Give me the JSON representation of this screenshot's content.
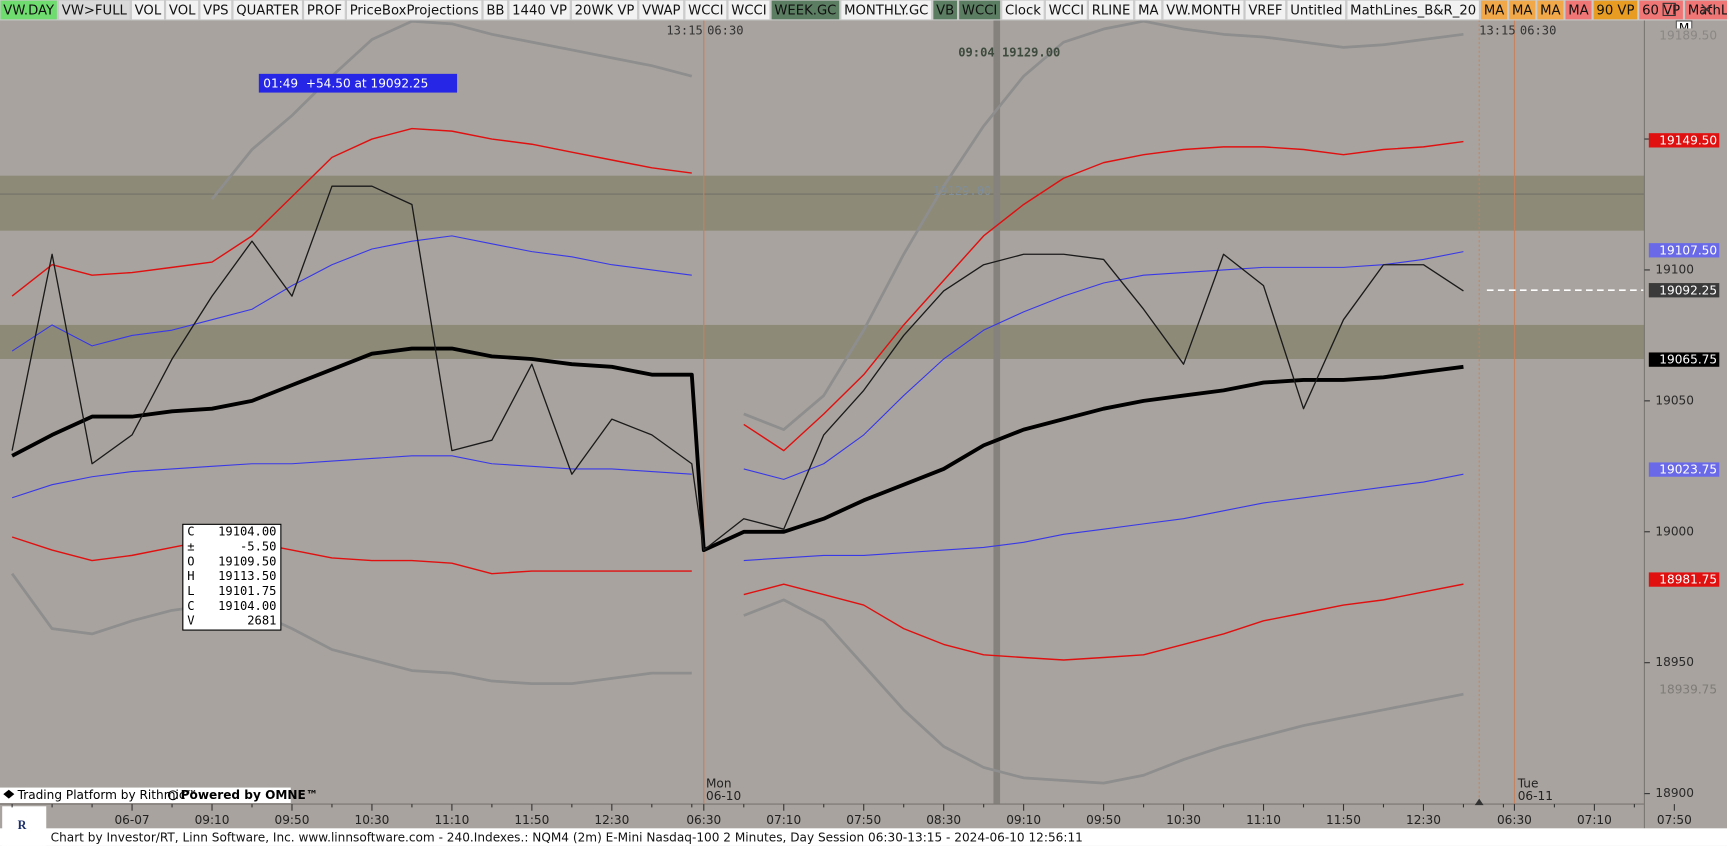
{
  "toolbar": {
    "buttons": [
      {
        "label": "VW.DAY",
        "color": "#6fdc6f"
      },
      {
        "label": "VW>FULL",
        "color": "#d9d9d9"
      },
      {
        "label": "VOL",
        "color": "#f2f2f2"
      },
      {
        "label": "VOL",
        "color": "#f2f2f2"
      },
      {
        "label": "VPS",
        "color": "#f2f2f2"
      },
      {
        "label": "QUARTER",
        "color": "#f2f2f2"
      },
      {
        "label": "PROF",
        "color": "#f2f2f2"
      },
      {
        "label": "PriceBoxProjections",
        "color": "#f2f2f2"
      },
      {
        "label": "BB",
        "color": "#f2f2f2"
      },
      {
        "label": "1440 VP",
        "color": "#f2f2f2"
      },
      {
        "label": "20WK VP",
        "color": "#f2f2f2"
      },
      {
        "label": "VWAP",
        "color": "#f2f2f2"
      },
      {
        "label": "WCCI",
        "color": "#f2f2f2"
      },
      {
        "label": "WCCI",
        "color": "#f2f2f2"
      },
      {
        "label": "WEEK.GC",
        "color": "#5b7d62"
      },
      {
        "label": "MONTHLY.GC",
        "color": "#f2f2f2"
      },
      {
        "label": "VB",
        "color": "#5b7d62"
      },
      {
        "label": "WCCI",
        "color": "#5b7d62"
      },
      {
        "label": "Clock",
        "color": "#f2f2f2"
      },
      {
        "label": "WCCI",
        "color": "#f2f2f2"
      },
      {
        "label": "RLINE",
        "color": "#f2f2f2"
      },
      {
        "label": "MA",
        "color": "#f2f2f2"
      },
      {
        "label": "VW.MONTH",
        "color": "#f2f2f2"
      },
      {
        "label": "VREF",
        "color": "#f2f2f2"
      },
      {
        "label": "Untitled",
        "color": "#f2f2f2"
      },
      {
        "label": "MathLines_B&R_20",
        "color": "#f2f2f2"
      },
      {
        "label": "MA",
        "color": "#f0a848"
      },
      {
        "label": "MA",
        "color": "#f0a848"
      },
      {
        "label": "MA",
        "color": "#f0a848"
      },
      {
        "label": "MA",
        "color": "#f07575"
      },
      {
        "label": "90 VP",
        "color": "#e89c22"
      },
      {
        "label": "60 VP",
        "color": "#f07575"
      },
      {
        "label": "MathLines",
        "color": "#f07575"
      }
    ]
  },
  "corner_label": "M",
  "session_labels": [
    "13:15",
    "06:30",
    "13:15",
    "06:30"
  ],
  "trade_label": "01:49  +54.50 at 19092.25",
  "annotation": "09:04 19129.00",
  "reference_label": "19129.00",
  "day_labels": [
    {
      "day": "Mon",
      "date": "06-10"
    },
    {
      "day": "Tue",
      "date": "06-11"
    }
  ],
  "info_box": {
    "rows": [
      [
        "C",
        "19104.00"
      ],
      [
        "±",
        "-5.50"
      ],
      [
        "O",
        "19109.50"
      ],
      [
        "H",
        "19113.50"
      ],
      [
        "L",
        "19101.75"
      ],
      [
        "C",
        "19104.00"
      ],
      [
        "V",
        "2681"
      ]
    ]
  },
  "branding": [
    "Trading Platform by Rithmic™",
    "Powered by OMNE™"
  ],
  "status_bar": "Chart by Investor/RT, Linn Software, Inc. www.linnsoftware.com - 240.Indexes.: NQM4 (2m) E-Mini Nasdaq-100 2 Minutes, Day Session 06:30-13:15 - 2024-06-10 12:56:11",
  "chart_data": {
    "type": "line",
    "categories": [
      null,
      null,
      null,
      "06-07",
      null,
      "09:10",
      null,
      "09:50",
      null,
      "10:30",
      null,
      "11:10",
      null,
      "11:50",
      null,
      "12:30",
      null,
      null,
      "06:30",
      null,
      "07:10",
      null,
      "07:50",
      null,
      "08:30",
      null,
      "09:10",
      null,
      "09:50",
      null,
      "10:30",
      null,
      "11:10",
      null,
      "11:50",
      null,
      "12:30",
      null,
      null,
      "06:30",
      null,
      "07:10",
      null,
      "07:50"
    ],
    "ylim": [
      18896,
      19195.5
    ],
    "yticks": [
      18900,
      18950,
      19000,
      19050,
      19100,
      19150
    ],
    "reference_value": 19129,
    "zones": [
      [
        19115,
        19136
      ],
      [
        19066,
        19079
      ]
    ],
    "series": [
      {
        "color": "#8e8e8e",
        "width": 2.5,
        "values": [
          null,
          null,
          null,
          null,
          null,
          19127,
          19146,
          19159,
          19174,
          19188,
          19195,
          19194,
          19190,
          19187,
          19184,
          19181,
          19178,
          19174,
          null,
          19045,
          19039,
          19052,
          19077,
          19106,
          19132,
          19155,
          19174,
          19187,
          19192,
          19195,
          19192,
          19190,
          19189,
          19187,
          19185,
          19186,
          19188,
          19190,
          null,
          null,
          null,
          null,
          null,
          null
        ]
      },
      {
        "color": "#8e8e8e",
        "width": 2.5,
        "values": [
          18984,
          18963,
          18961,
          18966,
          18970,
          18972,
          18970,
          18963,
          18955,
          18951,
          18947,
          18946,
          18943,
          18942,
          18942,
          18944,
          18946,
          18946,
          null,
          18968,
          18974,
          18966,
          18949,
          18932,
          18918,
          18910,
          18906,
          18905,
          18904,
          18907,
          18913,
          18918,
          18922,
          18926,
          18929,
          18932,
          18935,
          18938,
          null,
          null,
          null,
          null,
          null,
          null
        ]
      },
      {
        "color": "#e01010",
        "width": 1.3,
        "values": [
          19090,
          19102,
          19098,
          19099,
          19101,
          19103,
          19113,
          19128,
          19143,
          19150,
          19154,
          19153,
          19150,
          19148,
          19145,
          19142,
          19139,
          19137,
          null,
          19041,
          19031,
          19045,
          19060,
          19079,
          19096,
          19113,
          19125,
          19135,
          19141,
          19144,
          19146,
          19147,
          19147,
          19146,
          19144,
          19146,
          19147,
          19149,
          null,
          null,
          null,
          null,
          null,
          null
        ]
      },
      {
        "color": "#e01010",
        "width": 1.3,
        "values": [
          18998,
          18993,
          18989,
          18991,
          18994,
          18997,
          18996,
          18993,
          18990,
          18989,
          18989,
          18988,
          18984,
          18985,
          18985,
          18985,
          18985,
          18985,
          null,
          18976,
          18980,
          18976,
          18972,
          18963,
          18957,
          18953,
          18952,
          18951,
          18952,
          18953,
          18957,
          18961,
          18966,
          18969,
          18972,
          18974,
          18977,
          18980,
          null,
          null,
          null,
          null,
          null,
          null
        ]
      },
      {
        "color": "#3838e8",
        "width": 1,
        "values": [
          19069,
          19079,
          19071,
          19075,
          19077,
          19081,
          19085,
          19094,
          19102,
          19108,
          19111,
          19113,
          19110,
          19107,
          19105,
          19102,
          19100,
          19098,
          null,
          19024,
          19020,
          19026,
          19037,
          19052,
          19066,
          19077,
          19084,
          19090,
          19095,
          19098,
          19099,
          19100,
          19101,
          19101,
          19101,
          19102,
          19104,
          19107,
          null,
          null,
          null,
          null,
          null,
          null
        ]
      },
      {
        "color": "#3838e8",
        "width": 1,
        "values": [
          19013,
          19018,
          19021,
          19023,
          19024,
          19025,
          19026,
          19026,
          19027,
          19028,
          19029,
          19029,
          19026,
          19025,
          19024,
          19024,
          19023,
          19022,
          null,
          18989,
          18990,
          18991,
          18991,
          18992,
          18993,
          18994,
          18996,
          18999,
          19001,
          19003,
          19005,
          19008,
          19011,
          19013,
          19015,
          19017,
          19019,
          19022,
          null,
          null,
          null,
          null,
          null,
          null
        ]
      },
      {
        "color": "#000000",
        "width": 3.5,
        "values": [
          19029,
          19037,
          19044,
          19044,
          19046,
          19047,
          19050,
          19056,
          19062,
          19068,
          19070,
          19070,
          19067,
          19066,
          19064,
          19063,
          19060,
          19060,
          18993,
          19000,
          19000,
          19005,
          19012,
          19018,
          19024,
          19033,
          19039,
          19043,
          19047,
          19050,
          19052,
          19054,
          19057,
          19058,
          19058,
          19059,
          19061,
          19063,
          null,
          null,
          null,
          null,
          null,
          null
        ]
      },
      {
        "color": "#1a1a1a",
        "width": 1.2,
        "values": [
          19031,
          19106,
          19026,
          19037,
          19066,
          19090,
          19111,
          19090,
          19132,
          19132,
          19125,
          19031,
          19035,
          19064,
          19022,
          19043,
          19037,
          19026,
          18993,
          19005,
          19001,
          19037,
          19054,
          19075,
          19092,
          19102,
          19106,
          19106,
          19104,
          19085,
          19064,
          19106,
          19094,
          19047,
          19081,
          19102,
          19102,
          19092,
          null,
          null,
          null,
          null,
          null,
          null
        ]
      }
    ],
    "price_tags": [
      {
        "value": 19189.5,
        "label": "19189.50",
        "background": "#a8a39e",
        "color": "#8a8785"
      },
      {
        "value": 19149.5,
        "label": "19149.50",
        "background": "#e01010",
        "color": "#ffffff"
      },
      {
        "value": 19107.5,
        "label": "19107.50",
        "background": "#6a6ae8",
        "color": "#ffffff"
      },
      {
        "value": 19092.25,
        "label": "19092.25",
        "background": "#3a3a3a",
        "color": "#ffffff"
      },
      {
        "value": 19065.75,
        "label": "19065.75",
        "background": "#000000",
        "color": "#ffffff"
      },
      {
        "value": 19023.75,
        "label": "19023.75",
        "background": "#6a6ae8",
        "color": "#ffffff"
      },
      {
        "value": 18981.75,
        "label": "18981.75",
        "background": "#e01010",
        "color": "#ffffff"
      },
      {
        "value": 18939.75,
        "label": "18939.75",
        "background": "#a8a39e",
        "color": "#7e7b78"
      }
    ],
    "last_price_tag": 3
  }
}
